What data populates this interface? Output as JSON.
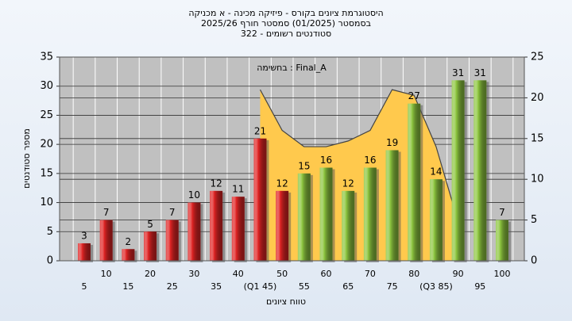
{
  "chart_data": {
    "type": "bar",
    "title_lines": [
      "היסטוגרמת ציונים בקורס - פיזיקה מכינה - א מכניקה",
      "בסמסטר  (01/2025)  סמסטר חורף 2025/26",
      "סטודנטים רשומים - 322"
    ],
    "annotation": "בחשימה : Final_A",
    "ylabel": "מספר סטודנטים",
    "xlabel": "טווח ציונים",
    "categories": [
      "5",
      "10",
      "15",
      "20",
      "25",
      "30",
      "35",
      "40",
      "(Q1 45)",
      "50",
      "55",
      "60",
      "65",
      "70",
      "75",
      "80",
      "(Q3 85)",
      "90",
      "95",
      "100"
    ],
    "ylim": [
      0,
      35
    ],
    "yticks": [
      0,
      5,
      10,
      15,
      20,
      25,
      30,
      35
    ],
    "y2lim": [
      0,
      25
    ],
    "y2ticks": [
      0,
      5,
      10,
      15,
      20,
      25
    ],
    "grid": true,
    "series": [
      {
        "type": "bar",
        "values": [
          3,
          7,
          2,
          5,
          7,
          10,
          12,
          11,
          21,
          12,
          15,
          16,
          12,
          16,
          19,
          27,
          14,
          31,
          31,
          7
        ],
        "colors": [
          "#e02424",
          "#e02424",
          "#e02424",
          "#e02424",
          "#e02424",
          "#e02424",
          "#e02424",
          "#e02424",
          "#e02424",
          "#e02424",
          "#8dc63f",
          "#8dc63f",
          "#8dc63f",
          "#8dc63f",
          "#8dc63f",
          "#8dc63f",
          "#8dc63f",
          "#8dc63f",
          "#8dc63f",
          "#8dc63f"
        ]
      },
      {
        "type": "area",
        "axis": "y2",
        "color": "#ffc94d",
        "values": [
          null,
          null,
          null,
          null,
          null,
          null,
          null,
          null,
          21,
          16,
          14,
          14,
          14.7,
          16,
          21,
          20.3,
          14,
          4.8,
          null,
          null
        ]
      }
    ]
  }
}
